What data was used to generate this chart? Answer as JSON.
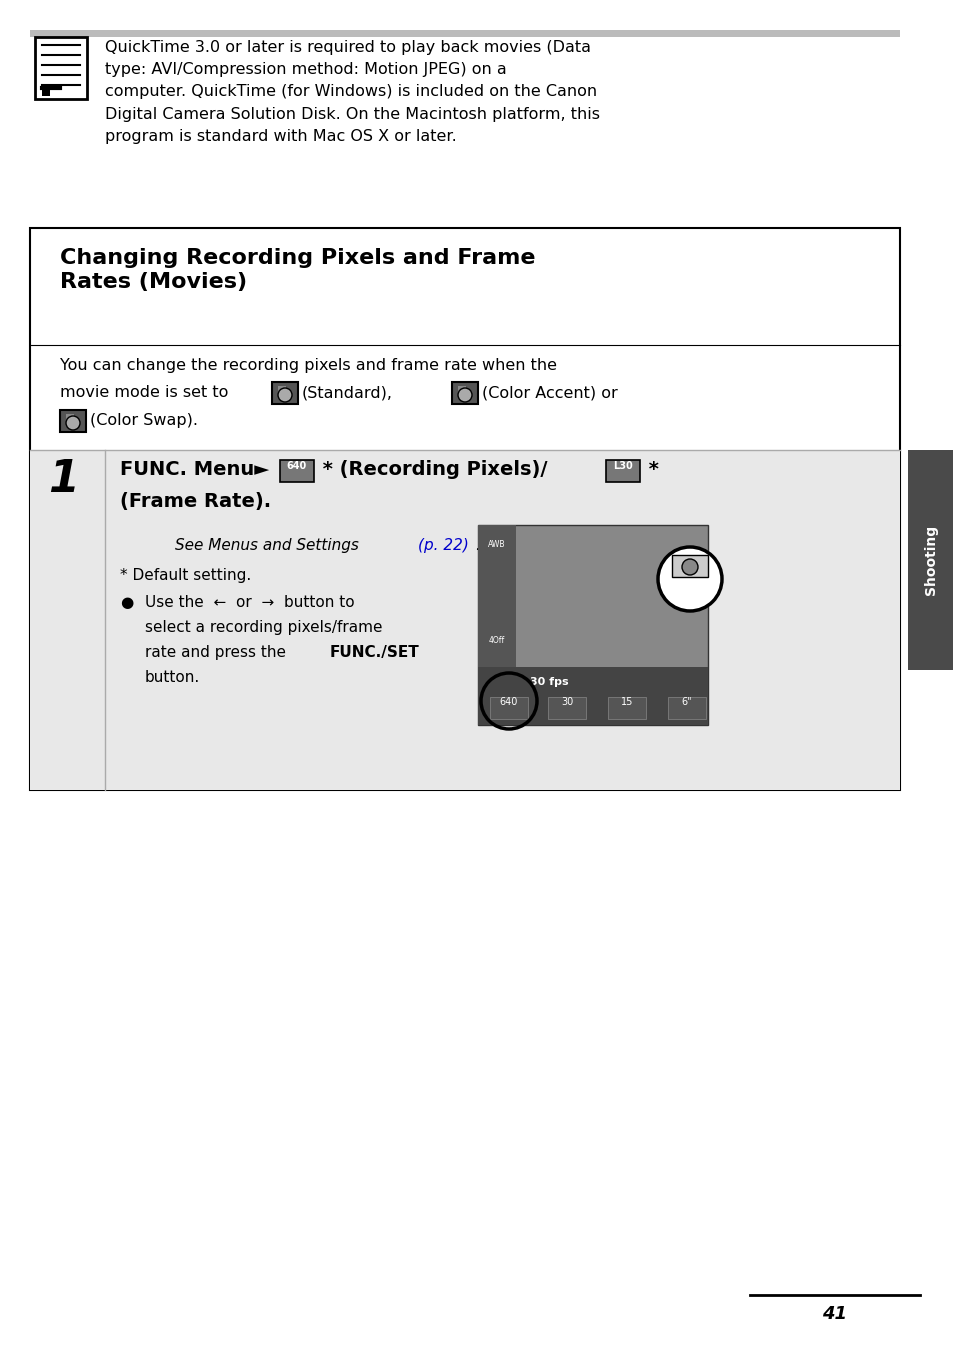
{
  "bg_color": "#ffffff",
  "note_bar_color": "#bbbbbb",
  "note_text": "QuickTime 3.0 or later is required to play back movies (Data\ntype: AVI/Compression method: Motion JPEG) on a\ncomputer. QuickTime (for Windows) is included on the Canon\nDigital Camera Solution Disk. On the Macintosh platform, this\nprogram is standard with Mac OS X or later.",
  "section_title": "Changing Recording Pixels and Frame\nRates (Movies)",
  "body_text1": "You can change the recording pixels and frame rate when the",
  "body_text2": "movie mode is set to",
  "standard_label": "(Standard),",
  "color_accent_label": "(Color Accent) or",
  "color_swap_label": "(Color Swap).",
  "step1_title_part1": "FUNC. Menu",
  "step1_title_part2": " * (Recording Pixels)/",
  "step1_title_part3": " *",
  "step1_title_part4": "(Frame Rate).",
  "see_menus_text": "See Menus and Settings ",
  "see_menus_link": "(p. 22)",
  "default_setting": "* Default setting.",
  "bullet_line1": "Use the  ←  or  →  button to",
  "bullet_line2": "select a recording pixels/frame",
  "bullet_line3": "rate and press the ",
  "bullet_bold": "FUNC./SET",
  "bullet_line4": "button.",
  "page_number": "41",
  "shooting_label": "Shooting",
  "sidebar_color": "#4a4a4a",
  "light_gray_bg": "#e0e0e0",
  "screen_bg": "#888888",
  "screen_dark": "#444444",
  "screen_sidebar": "#555555",
  "step_divider_color": "#999999",
  "link_color": "#0000cc"
}
